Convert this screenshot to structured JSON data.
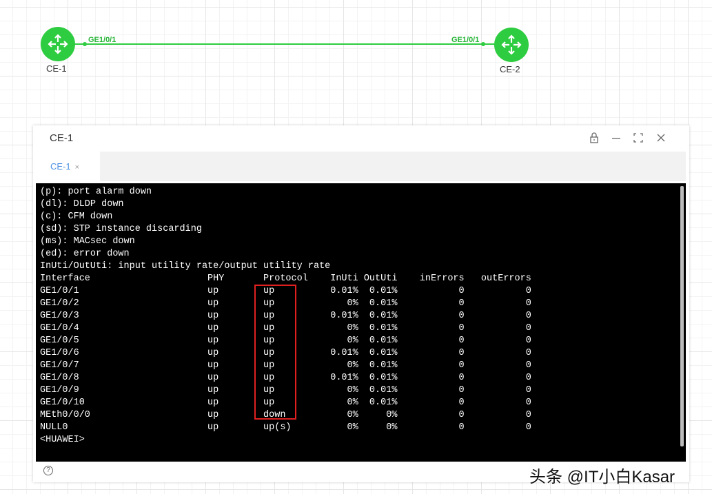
{
  "topology": {
    "nodes": [
      {
        "label": "CE-1"
      },
      {
        "label": "CE-2"
      }
    ],
    "link": {
      "a_port": "GE1/0/1",
      "b_port": "GE1/0/1",
      "color": "#2ecc40"
    }
  },
  "window": {
    "title": "CE-1",
    "tab": "CE-1",
    "tab_close": "×",
    "controls": [
      "lock-icon",
      "minimize-icon",
      "fullscreen-icon",
      "close-icon"
    ],
    "help": "?"
  },
  "terminal": {
    "legend": [
      "(p): port alarm down",
      "(dl): DLDP down",
      "(c): CFM down",
      "(sd): STP instance discarding",
      "(ms): MACsec down",
      "(ed): error down",
      "InUti/OutUti: input utility rate/output utility rate"
    ],
    "headers": [
      "Interface",
      "PHY",
      "Protocol",
      "InUti",
      "OutUti",
      "inErrors",
      "outErrors"
    ],
    "rows": [
      [
        "GE1/0/1",
        "up",
        "up",
        "0.01%",
        "0.01%",
        "0",
        "0"
      ],
      [
        "GE1/0/2",
        "up",
        "up",
        "0%",
        "0.01%",
        "0",
        "0"
      ],
      [
        "GE1/0/3",
        "up",
        "up",
        "0.01%",
        "0.01%",
        "0",
        "0"
      ],
      [
        "GE1/0/4",
        "up",
        "up",
        "0%",
        "0.01%",
        "0",
        "0"
      ],
      [
        "GE1/0/5",
        "up",
        "up",
        "0%",
        "0.01%",
        "0",
        "0"
      ],
      [
        "GE1/0/6",
        "up",
        "up",
        "0.01%",
        "0.01%",
        "0",
        "0"
      ],
      [
        "GE1/0/7",
        "up",
        "up",
        "0%",
        "0.01%",
        "0",
        "0"
      ],
      [
        "GE1/0/8",
        "up",
        "up",
        "0.01%",
        "0.01%",
        "0",
        "0"
      ],
      [
        "GE1/0/9",
        "up",
        "up",
        "0%",
        "0.01%",
        "0",
        "0"
      ],
      [
        "GE1/0/10",
        "up",
        "up",
        "0%",
        "0.01%",
        "0",
        "0"
      ],
      [
        "MEth0/0/0",
        "up",
        "down",
        "0%",
        "0%",
        "0",
        "0"
      ],
      [
        "NULL0",
        "up",
        "up(s)",
        "0%",
        "0%",
        "0",
        "0"
      ]
    ],
    "prompt": "<HUAWEI>",
    "highlight_color": "#e02020"
  },
  "watermark": "头条 @IT小白Kasar"
}
